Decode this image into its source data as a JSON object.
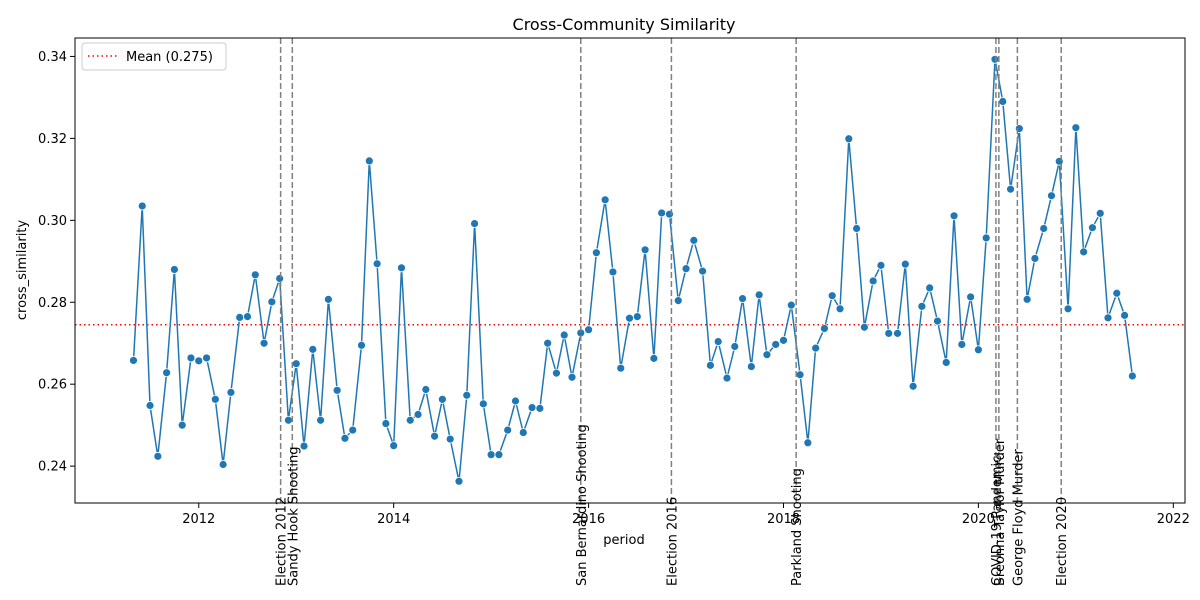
{
  "chart_data": {
    "type": "line",
    "title": "Cross-Community Similarity",
    "xlabel": "period",
    "ylabel": "cross_similarity",
    "xlim": [
      2010.73,
      2022.12
    ],
    "ylim": [
      0.231,
      0.3445
    ],
    "x_ticks": [
      2012,
      2014,
      2016,
      2018,
      2020,
      2022
    ],
    "y_ticks": [
      0.24,
      0.26,
      0.28,
      0.3,
      0.32,
      0.34
    ],
    "y_tick_labels": [
      "0.24",
      "0.26",
      "0.28",
      "0.30",
      "0.32",
      "0.34"
    ],
    "mean": {
      "value": 0.2745,
      "label": "Mean (0.275)",
      "color": "#ff0000"
    },
    "legend_position": "top-left",
    "line_color": "#1f77b4",
    "event_color": "#808080",
    "events": [
      {
        "label": "Election 2012",
        "x": 2012.84
      },
      {
        "label": "Sandy Hook Shooting",
        "x": 2012.96
      },
      {
        "label": "San Bernardino Shooting",
        "x": 2015.92
      },
      {
        "label": "Election 2016",
        "x": 2016.85
      },
      {
        "label": "Parkland Shooting",
        "x": 2018.13
      },
      {
        "label": "COVID-19 Pandemic",
        "x": 2020.18
      },
      {
        "label": "Breonna Taylor Murder",
        "x": 2020.21
      },
      {
        "label": "George Floyd Murder",
        "x": 2020.4
      },
      {
        "label": "Election 2020",
        "x": 2020.85
      }
    ],
    "series": [
      {
        "x": [
          2011.33,
          2011.42,
          2011.5,
          2011.58,
          2011.67,
          2011.75,
          2011.83,
          2011.92,
          2012.0,
          2012.08,
          2012.17,
          2012.25,
          2012.33,
          2012.42,
          2012.5,
          2012.58,
          2012.67,
          2012.75,
          2012.83,
          2012.92,
          2013.0,
          2013.08,
          2013.17,
          2013.25,
          2013.33,
          2013.42,
          2013.5,
          2013.58,
          2013.67,
          2013.75,
          2013.83,
          2013.92,
          2014.0,
          2014.08,
          2014.17,
          2014.25,
          2014.33,
          2014.42,
          2014.5,
          2014.58,
          2014.67,
          2014.75,
          2014.83,
          2014.92,
          2015.0,
          2015.08,
          2015.17,
          2015.25,
          2015.33,
          2015.42,
          2015.5,
          2015.58,
          2015.67,
          2015.75,
          2015.83,
          2015.92,
          2016.0,
          2016.08,
          2016.17,
          2016.25,
          2016.33,
          2016.42,
          2016.5,
          2016.58,
          2016.67,
          2016.75,
          2016.83,
          2016.92,
          2017.0,
          2017.08,
          2017.17,
          2017.25,
          2017.33,
          2017.42,
          2017.5,
          2017.58,
          2017.67,
          2017.75,
          2017.83,
          2017.92,
          2018.0,
          2018.08,
          2018.17,
          2018.25,
          2018.33,
          2018.42,
          2018.5,
          2018.58,
          2018.67,
          2018.75,
          2018.83,
          2018.92,
          2019.0,
          2019.08,
          2019.17,
          2019.25,
          2019.33,
          2019.42,
          2019.5,
          2019.58,
          2019.67,
          2019.75,
          2019.83,
          2019.92,
          2020.0,
          2020.08,
          2020.17,
          2020.25,
          2020.33,
          2020.42,
          2020.5,
          2020.58,
          2020.67,
          2020.75,
          2020.83,
          2020.92,
          2021.0,
          2021.08,
          2021.17,
          2021.25,
          2021.33,
          2021.42,
          2021.5,
          2021.58
        ],
        "y": [
          0.2658,
          0.3035,
          0.2548,
          0.2424,
          0.2628,
          0.288,
          0.25,
          0.2664,
          0.2657,
          0.2664,
          0.2563,
          0.2404,
          0.258,
          0.2763,
          0.2765,
          0.2867,
          0.27,
          0.2801,
          0.2858,
          0.2512,
          0.265,
          0.2449,
          0.2685,
          0.2512,
          0.2807,
          0.2585,
          0.2468,
          0.2488,
          0.2695,
          0.3145,
          0.2894,
          0.2504,
          0.245,
          0.2884,
          0.2512,
          0.2526,
          0.2587,
          0.2473,
          0.2563,
          0.2466,
          0.2363,
          0.2573,
          0.2992,
          0.2552,
          0.2428,
          0.2428,
          0.2488,
          0.2559,
          0.2482,
          0.2543,
          0.2541,
          0.27,
          0.2627,
          0.272,
          0.2617,
          0.2725,
          0.2733,
          0.2921,
          0.305,
          0.2874,
          0.2639,
          0.2761,
          0.2765,
          0.2928,
          0.2663,
          0.3018,
          0.3015,
          0.2804,
          0.2882,
          0.2951,
          0.2876,
          0.2646,
          0.2704,
          0.2615,
          0.2692,
          0.2809,
          0.2643,
          0.2818,
          0.2672,
          0.2697,
          0.2707,
          0.2793,
          0.2623,
          0.2457,
          0.2688,
          0.2736,
          0.2816,
          0.2784,
          0.3199,
          0.298,
          0.2739,
          0.2852,
          0.289,
          0.2724,
          0.2724,
          0.2893,
          0.2595,
          0.279,
          0.2835,
          0.2754,
          0.2653,
          0.3011,
          0.2697,
          0.2813,
          0.2684,
          0.2957,
          0.3393,
          0.329,
          0.3076,
          0.3224,
          0.2807,
          0.2907,
          0.298,
          0.306,
          0.3144,
          0.2784,
          0.3226,
          0.2923,
          0.2982,
          0.3017,
          0.2762,
          0.2822,
          0.2768,
          0.262
        ]
      }
    ]
  }
}
